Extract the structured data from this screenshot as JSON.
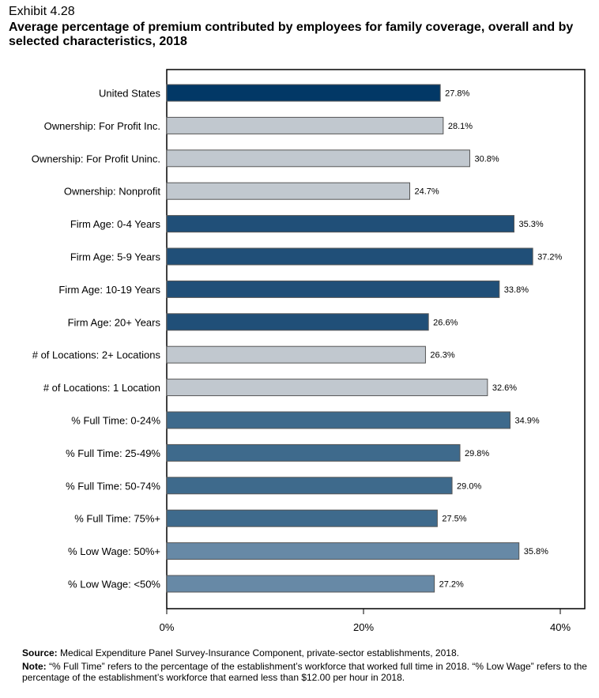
{
  "exhibit": "Exhibit 4.28",
  "title": "Average percentage of premium contributed by employees for family coverage, overall and by selected characteristics, 2018",
  "colors": {
    "overall": "#023866",
    "firm_age": "#204f78",
    "full_time": "#3e6a8c",
    "low_wage": "#6789a6",
    "ownership_locations": "#c1c8cf"
  },
  "chart_data": {
    "type": "bar",
    "orientation": "horizontal",
    "title": "Average percentage of premium contributed by employees for family coverage, overall and by selected characteristics, 2018",
    "xlabel": "",
    "ylabel": "",
    "xlim": [
      0,
      40
    ],
    "xticks": [
      "0%",
      "20%",
      "40%"
    ],
    "grid": false,
    "categories": [
      "United States",
      "Ownership: For Profit Inc.",
      "Ownership: For Profit Uninc.",
      "Ownership: Nonprofit",
      "Firm Age: 0-4 Years",
      "Firm Age: 5-9 Years",
      "Firm Age: 10-19 Years",
      "Firm Age: 20+ Years",
      "# of Locations: 2+ Locations",
      "# of Locations: 1 Location",
      "% Full Time: 0-24%",
      "% Full Time: 25-49%",
      "% Full Time: 50-74%",
      "% Full Time: 75%+",
      "% Low Wage: 50%+",
      "% Low Wage: <50%"
    ],
    "values": [
      27.8,
      28.1,
      30.8,
      24.7,
      35.3,
      37.2,
      33.8,
      26.6,
      26.3,
      32.6,
      34.9,
      29.8,
      29.0,
      27.5,
      35.8,
      27.2
    ],
    "data_labels": [
      "27.8%",
      "28.1%",
      "30.8%",
      "24.7%",
      "35.3%",
      "37.2%",
      "33.8%",
      "26.6%",
      "26.3%",
      "32.6%",
      "34.9%",
      "29.8%",
      "29.0%",
      "27.5%",
      "35.8%",
      "27.2%"
    ],
    "bar_groups": [
      "overall",
      "ownership_locations",
      "ownership_locations",
      "ownership_locations",
      "firm_age",
      "firm_age",
      "firm_age",
      "firm_age",
      "ownership_locations",
      "ownership_locations",
      "full_time",
      "full_time",
      "full_time",
      "full_time",
      "low_wage",
      "low_wage"
    ]
  },
  "footer": {
    "source_label": "Source:",
    "source_text": " Medical Expenditure Panel Survey-Insurance Component, private-sector establishments, 2018.",
    "note_label": "Note:",
    "note_text": " “% Full Time” refers to the percentage of the establishment’s workforce that worked full time in 2018. “% Low Wage” refers to the percentage of the establishment’s workforce that earned less than $12.00 per hour in 2018."
  }
}
